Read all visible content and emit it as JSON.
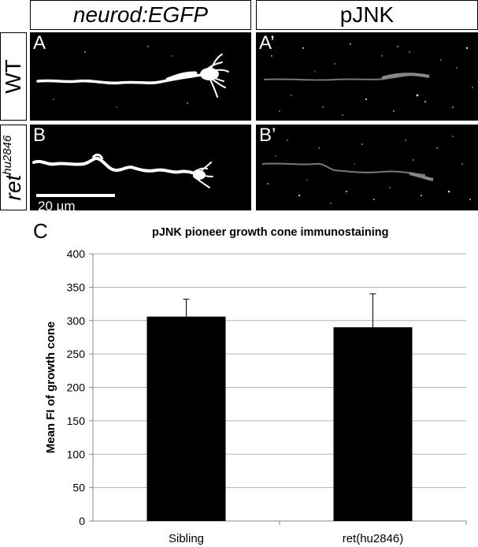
{
  "headers": {
    "left": "neurod:EGFP",
    "right": "pJNK"
  },
  "row_labels": {
    "wt": "WT",
    "mutant_base": "ret",
    "mutant_super": "hu2846"
  },
  "panels": {
    "a": "A",
    "a_prime": "A’",
    "b": "B",
    "b_prime": "B’"
  },
  "scale_bar": "20 µm",
  "panel_c_label": "C",
  "chart_data": {
    "type": "bar",
    "title": "pJNK pioneer growth cone immunostaining",
    "xlabel": "",
    "ylabel": "Mean FI of growth cone",
    "categories": [
      "Sibling",
      "ret(hu2846)"
    ],
    "values": [
      306,
      290
    ],
    "error": [
      26,
      50
    ],
    "ylim": [
      0,
      400
    ],
    "yticks": [
      0,
      50,
      100,
      150,
      200,
      250,
      300,
      350,
      400
    ],
    "grid": true,
    "bar_color": "#000000",
    "grid_color": "#b3b3b3"
  }
}
